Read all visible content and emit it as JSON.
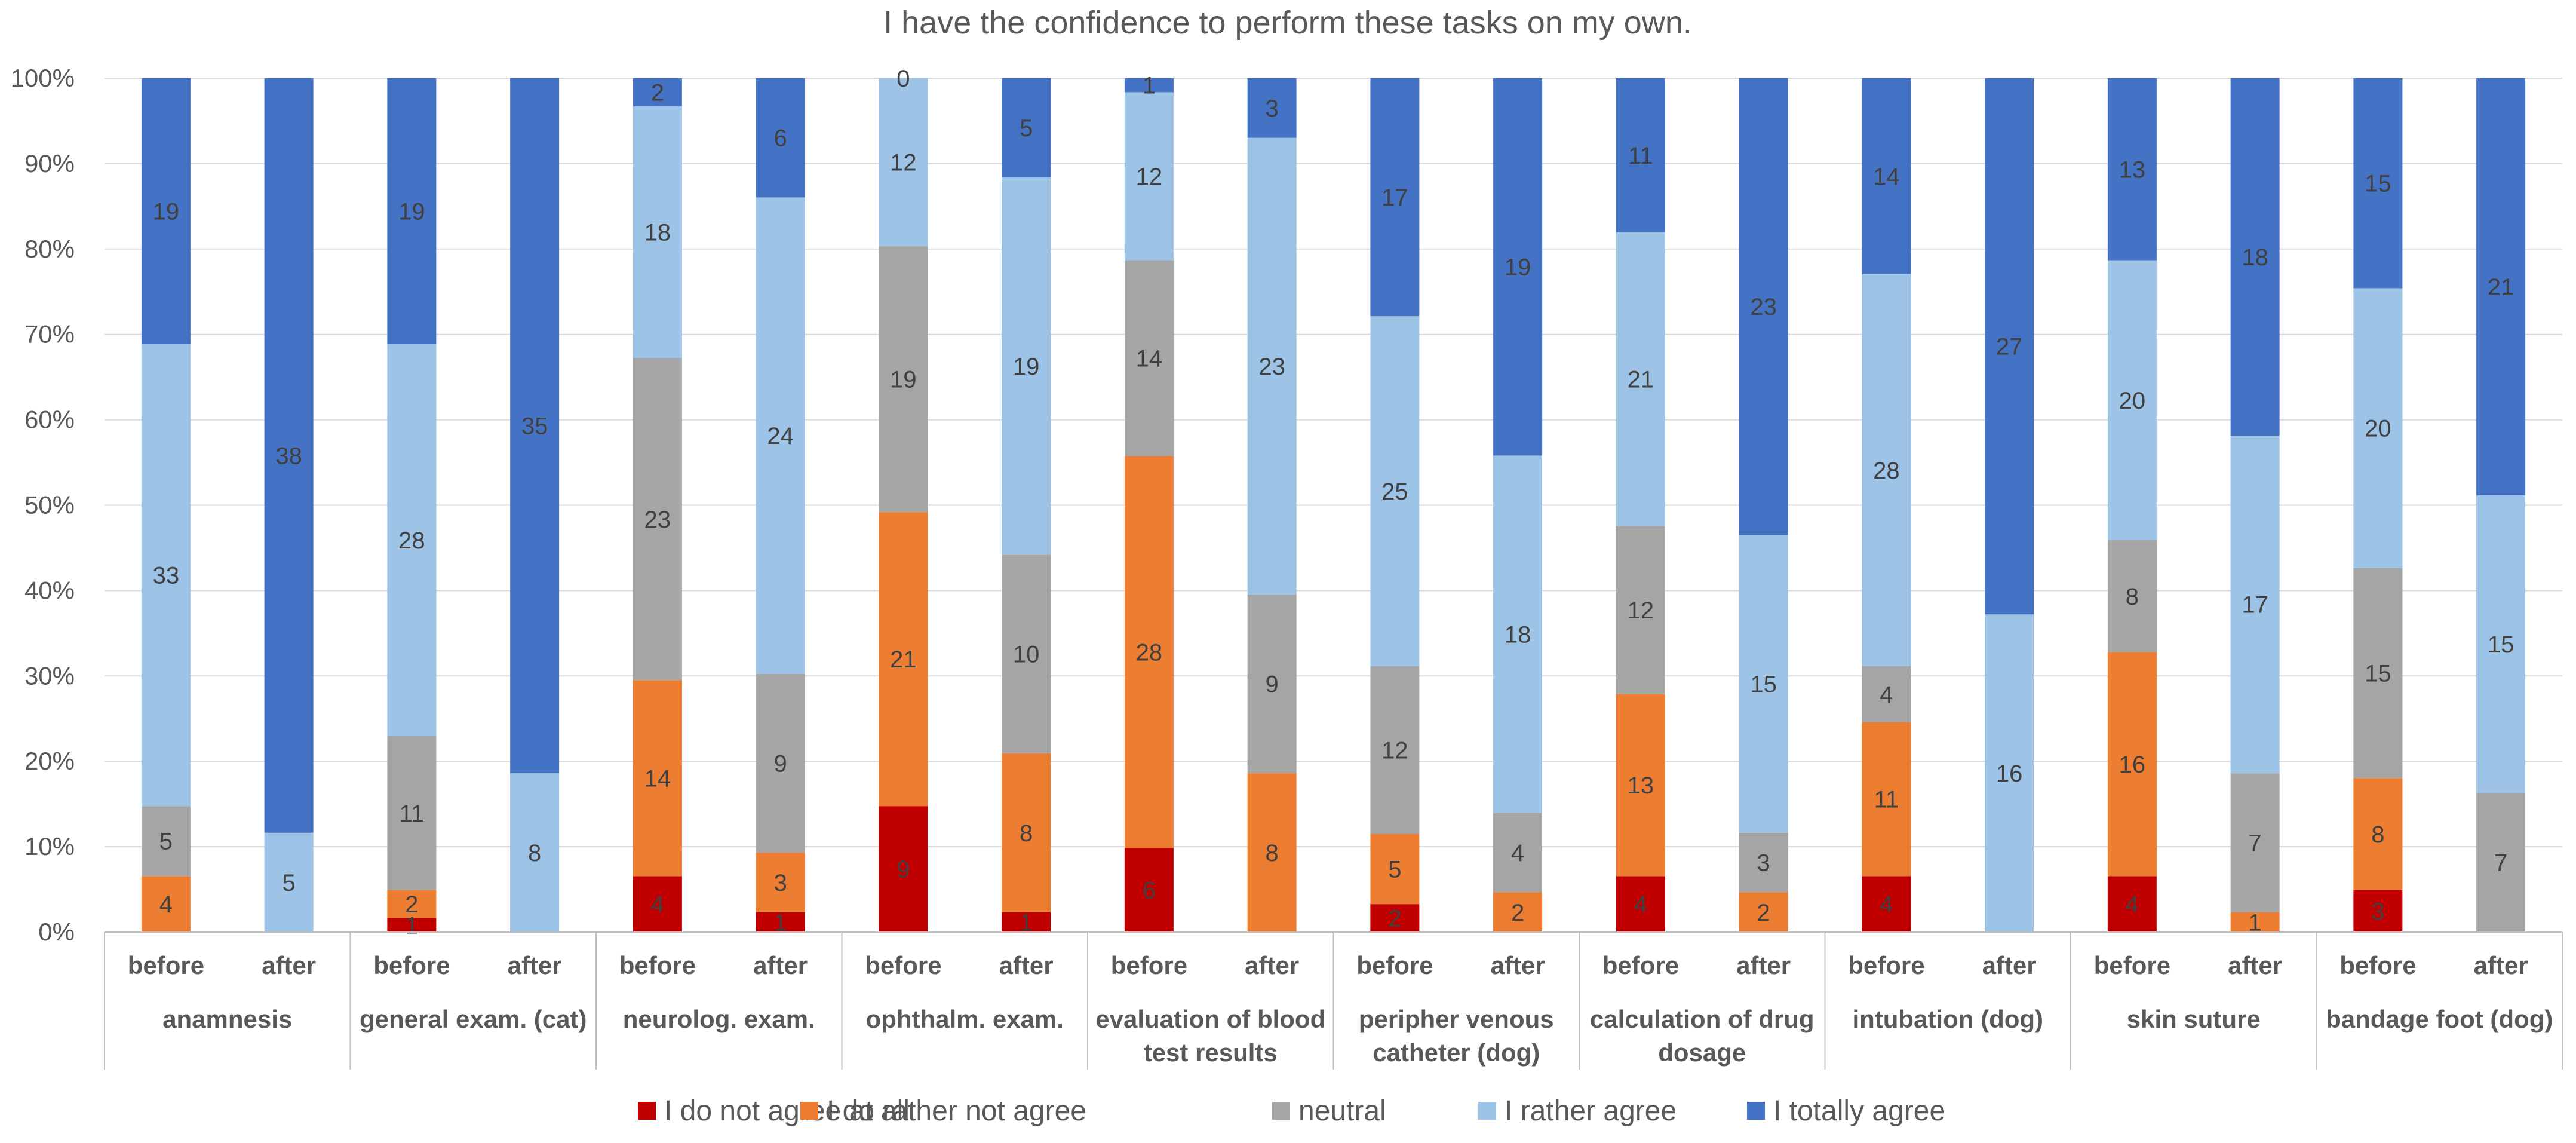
{
  "chart_data": {
    "type": "bar",
    "stacked": "percent",
    "title": "I have the confidence to perform these tasks on my own.",
    "yticks": [
      "0%",
      "10%",
      "20%",
      "30%",
      "40%",
      "50%",
      "60%",
      "70%",
      "80%",
      "90%",
      "100%"
    ],
    "ylim": [
      0,
      100
    ],
    "groups": [
      {
        "name": "anamnesis",
        "lines": [
          "anamnesis"
        ],
        "categories": [
          "before",
          "after"
        ]
      },
      {
        "name": "general exam. (cat)",
        "lines": [
          "general exam. (cat)"
        ],
        "categories": [
          "before",
          "after"
        ]
      },
      {
        "name": "neurolog. exam.",
        "lines": [
          "neurolog. exam."
        ],
        "categories": [
          "before",
          "after"
        ]
      },
      {
        "name": "ophthalm. exam.",
        "lines": [
          "ophthalm. exam."
        ],
        "categories": [
          "before",
          "after"
        ]
      },
      {
        "name": "evaluation of blood test results",
        "lines": [
          "evaluation of blood",
          "test results"
        ],
        "categories": [
          "before",
          "after"
        ]
      },
      {
        "name": "peripher venous catheter (dog)",
        "lines": [
          "peripher venous",
          "catheter (dog)"
        ],
        "categories": [
          "before",
          "after"
        ]
      },
      {
        "name": "calculation of drug dosage",
        "lines": [
          "calculation of drug",
          "dosage"
        ],
        "categories": [
          "before",
          "after"
        ]
      },
      {
        "name": "intubation (dog)",
        "lines": [
          "intubation (dog)"
        ],
        "categories": [
          "before",
          "after"
        ]
      },
      {
        "name": "skin suture",
        "lines": [
          "skin suture"
        ],
        "categories": [
          "before",
          "after"
        ]
      },
      {
        "name": "bandage foot (dog)",
        "lines": [
          "bandage foot (dog)"
        ],
        "categories": [
          "before",
          "after"
        ]
      }
    ],
    "series": [
      {
        "name": "I do not agree at all",
        "color": "#C00000",
        "values": [
          0,
          0,
          1,
          0,
          4,
          1,
          9,
          1,
          6,
          0,
          2,
          0,
          4,
          0,
          4,
          0,
          4,
          0,
          3,
          0
        ]
      },
      {
        "name": "I do rather not agree",
        "color": "#ED7D31",
        "values": [
          4,
          0,
          2,
          0,
          14,
          3,
          21,
          8,
          28,
          8,
          5,
          2,
          13,
          2,
          11,
          0,
          16,
          1,
          8,
          0
        ]
      },
      {
        "name": "neutral",
        "color": "#A5A5A5",
        "values": [
          5,
          0,
          11,
          0,
          23,
          9,
          19,
          10,
          14,
          9,
          12,
          4,
          12,
          3,
          4,
          0,
          8,
          7,
          15,
          7
        ]
      },
      {
        "name": "I rather agree",
        "color": "#9DC3E6",
        "values": [
          33,
          5,
          28,
          8,
          18,
          24,
          12,
          19,
          12,
          23,
          25,
          18,
          21,
          15,
          28,
          16,
          20,
          17,
          20,
          15
        ]
      },
      {
        "name": "I totally agree",
        "color": "#4472C4",
        "values": [
          19,
          38,
          19,
          35,
          2,
          6,
          0,
          5,
          1,
          3,
          17,
          19,
          11,
          23,
          14,
          27,
          13,
          18,
          15,
          21
        ]
      }
    ],
    "legend_position": "bottom"
  }
}
